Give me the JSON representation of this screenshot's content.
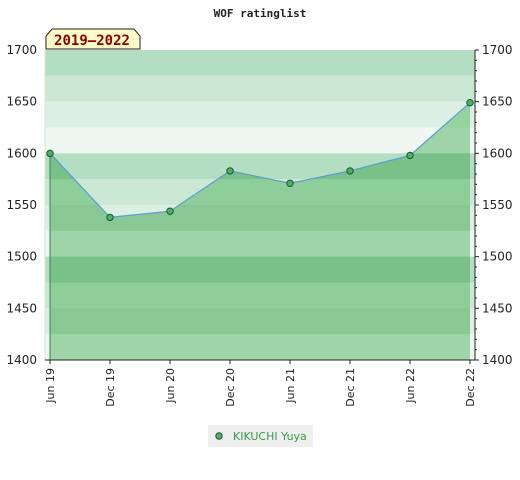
{
  "chart_data": {
    "type": "line",
    "title": "WOF ratinglist",
    "period_badge": "2019–2022",
    "categories": [
      "Jun 19",
      "Dec 19",
      "Jun 20",
      "Dec 20",
      "Jun 21",
      "Dec 21",
      "Jun 22",
      "Dec 22"
    ],
    "series": [
      {
        "name": "KIKUCHI Yuya",
        "values": [
          1600,
          1538,
          1544,
          1583,
          1571,
          1583,
          1598,
          1649
        ]
      }
    ],
    "ylim": [
      1400,
      1700
    ],
    "yticks": [
      1400,
      1450,
      1500,
      1550,
      1600,
      1650,
      1700
    ],
    "xlabel": "",
    "ylabel": "",
    "grid": false,
    "legend": "bottom",
    "colors": {
      "line": "#5b9bd5",
      "marker_fill": "#4caf6a",
      "marker_stroke": "#1e5a2a",
      "area_fill": "#5cb86a",
      "badge_bg": "#fffbc8",
      "legend_bg": "#efefef",
      "legend_text": "#3a9a4a"
    }
  }
}
